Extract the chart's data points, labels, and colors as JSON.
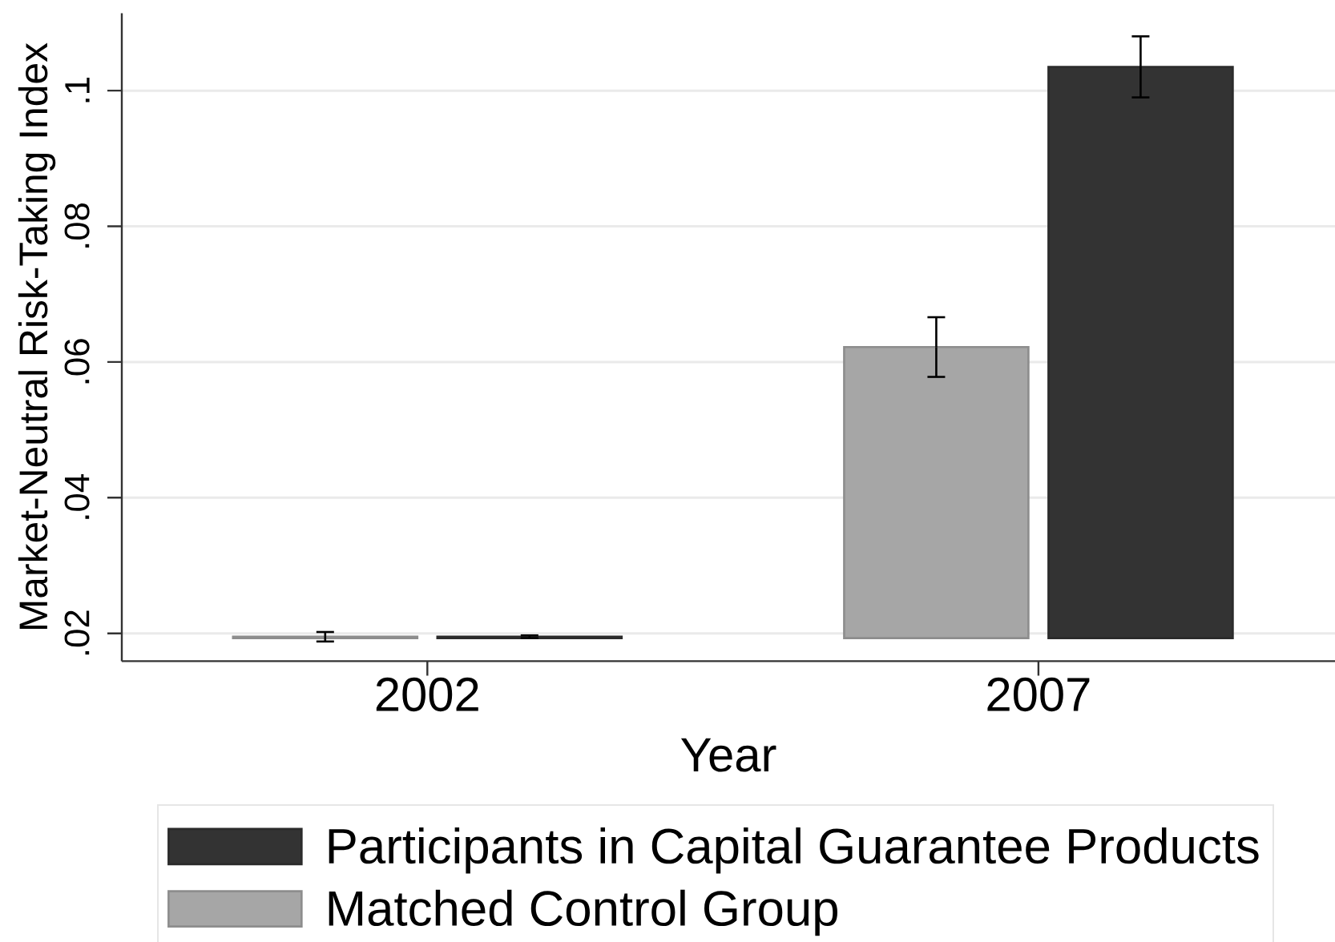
{
  "chart_data": {
    "type": "bar",
    "xlabel": "Year",
    "ylabel": "Market-Neutral Risk-Taking Index",
    "categories": [
      "2002",
      "2007"
    ],
    "series": [
      {
        "name": "Matched Control Group",
        "color": "#a6a6a6",
        "base": [
          0.0193,
          0.0193
        ],
        "values": [
          0.0002,
          0.0429
        ],
        "errors": [
          0.0007,
          0.0044
        ]
      },
      {
        "name": "Participants in Capital Guarantee Products",
        "color": "#333333",
        "base": [
          0.0193,
          0.0193
        ],
        "values": [
          0.0002,
          0.0842
        ],
        "errors": [
          0.0002,
          0.0045
        ]
      }
    ],
    "ylim": [
      0.0159,
      0.1114
    ],
    "yticks": [
      {
        "value": 0.02,
        "label": ".02"
      },
      {
        "value": 0.04,
        "label": ".04"
      },
      {
        "value": 0.06,
        "label": ".06"
      },
      {
        "value": 0.08,
        "label": ".08"
      },
      {
        "value": 0.1,
        "label": ".1"
      }
    ],
    "grid": "y",
    "legend": "bottom"
  }
}
